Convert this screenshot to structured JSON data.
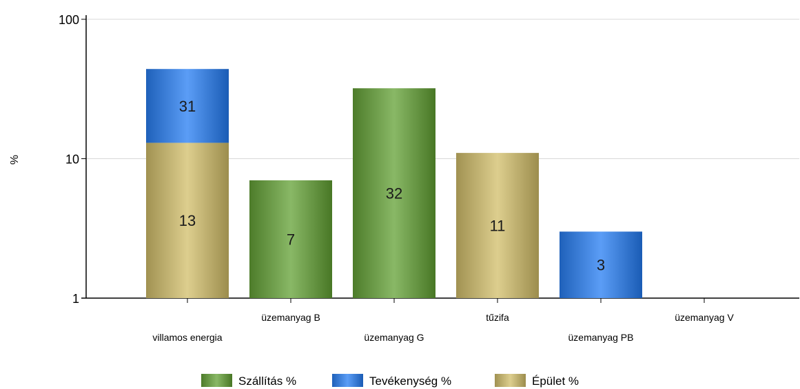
{
  "chart_data": {
    "type": "bar",
    "stacked": true,
    "y_scale": "log",
    "ylim": [
      1,
      100
    ],
    "y_ticks": [
      "1",
      "10",
      "100"
    ],
    "ylabel": "%",
    "xlabel": "",
    "title": "",
    "grid": "horizontal",
    "legend_position": "bottom",
    "categories": [
      "villamos energia",
      "üzemanyag B",
      "üzemanyag G",
      "tűzifa",
      "üzemanyag PB",
      "üzemanyag V"
    ],
    "series": [
      {
        "name": "Szállítás %",
        "color": "#6b9a48",
        "values": [
          0,
          7,
          32,
          0,
          0,
          0
        ]
      },
      {
        "name": "Tevékenység %",
        "color": "#3d7fd8",
        "values": [
          31,
          0,
          0,
          0,
          3,
          0
        ]
      },
      {
        "name": "Épület %",
        "color": "#bfb070",
        "values": [
          13,
          0,
          0,
          11,
          0,
          0
        ]
      }
    ],
    "stack_order": [
      "Épület %",
      "Szállítás %",
      "Tevékenység %"
    ]
  }
}
